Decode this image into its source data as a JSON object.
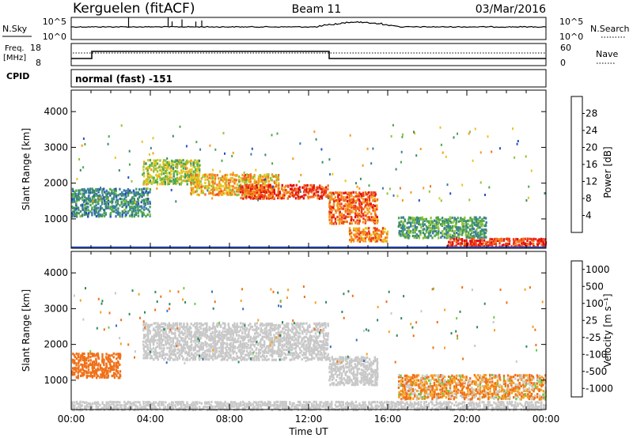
{
  "header": {
    "station": "Kerguelen (fitACF)",
    "beam": "Beam 11",
    "date": "03/Mar/2016"
  },
  "noise_panel": {
    "left_label": "N.Sky",
    "right_label": "N.Search",
    "left_ticks": [
      "10^5",
      "10^0"
    ],
    "right_ticks": [
      "10^5",
      "10^0"
    ]
  },
  "freq_panel": {
    "left_label_1": "Freq.",
    "left_label_2": "[MHz]",
    "right_label": "Nave",
    "left_ticks": [
      "18",
      "8"
    ],
    "right_ticks": [
      "60",
      "0"
    ]
  },
  "cpid_panel": {
    "label": "CPID",
    "mode_text": "normal (fast) -151"
  },
  "chart_data": [
    {
      "type": "heatmap",
      "panel": "power",
      "ylabel": "Slant Range [km]",
      "y_ticks": [
        "1000",
        "2000",
        "3000",
        "4000"
      ],
      "ylim": [
        180,
        4600
      ],
      "xlim_hours": [
        0,
        24
      ],
      "colorbar_label": "Power [dB]",
      "colorbar_ticks": [
        "4",
        "8",
        "12",
        "16",
        "20",
        "24",
        "28"
      ],
      "colorbar_colors": [
        "#1c1cf0",
        "#2a4fc0",
        "#3a7ca8",
        "#3d8a6a",
        "#4ea84a",
        "#8fc43a",
        "#e6c51f",
        "#f59a1a",
        "#f5701a",
        "#ee3a15",
        "#e01010"
      ],
      "range_min_km": 180,
      "range_max_km": 4600,
      "bands": [
        {
          "t0": 0.0,
          "t1": 4.0,
          "r0": 1100,
          "r1": 1900,
          "val": 10
        },
        {
          "t0": 3.6,
          "t1": 6.5,
          "r0": 2000,
          "r1": 2700,
          "val": 16
        },
        {
          "t0": 6.0,
          "t1": 10.5,
          "r0": 1700,
          "r1": 2300,
          "val": 21
        },
        {
          "t0": 8.5,
          "t1": 13.0,
          "r0": 1600,
          "r1": 2000,
          "val": 27
        },
        {
          "t0": 13.0,
          "t1": 15.5,
          "r0": 900,
          "r1": 1800,
          "val": 25
        },
        {
          "t0": 14.0,
          "t1": 16.0,
          "r0": 400,
          "r1": 800,
          "val": 23
        },
        {
          "t0": 16.5,
          "t1": 21.0,
          "r0": 500,
          "r1": 1100,
          "val": 12
        },
        {
          "t0": 19.0,
          "t1": 24.0,
          "r0": 250,
          "r1": 500,
          "val": 28
        }
      ]
    },
    {
      "type": "heatmap",
      "panel": "velocity",
      "ylabel": "Slant Range [km]",
      "y_ticks": [
        "1000",
        "2000",
        "3000",
        "4000"
      ],
      "ylim": [
        180,
        4600
      ],
      "xlabel": "Time UT",
      "x_ticks": [
        "00:00",
        "04:00",
        "08:00",
        "12:00",
        "16:00",
        "20:00",
        "00:00"
      ],
      "colorbar_label": "Velocity [m s⁻¹]",
      "colorbar_ticks": [
        "1000",
        "500",
        "100",
        "25",
        "-25",
        "-100",
        "-500",
        "-1000"
      ],
      "colorbar_colors": [
        "#2a3cd0",
        "#3a6fc0",
        "#2e8a5a",
        "#6ec94a",
        "#c8c8c8",
        "#c8c8c8",
        "#f5a020",
        "#f07018",
        "#e63010"
      ],
      "bands": [
        {
          "t0": 0.0,
          "t1": 2.5,
          "r0": 1100,
          "r1": 1800,
          "val": -300
        },
        {
          "t0": 3.6,
          "t1": 13.0,
          "r0": 1600,
          "r1": 2650,
          "val": 0
        },
        {
          "t0": 13.0,
          "t1": 15.5,
          "r0": 900,
          "r1": 1700,
          "val": 0
        },
        {
          "t0": 16.5,
          "t1": 24.0,
          "r0": 500,
          "r1": 1200,
          "val": -80
        },
        {
          "t0": 0.0,
          "t1": 24.0,
          "r0": 200,
          "r1": 450,
          "val": 0
        }
      ]
    }
  ]
}
